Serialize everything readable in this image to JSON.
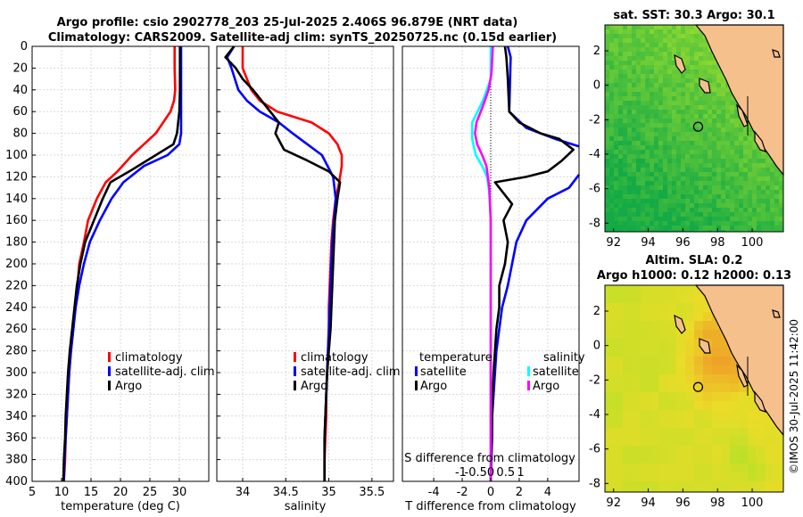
{
  "title_line1": "Argo profile: csio 2902778_203 25-Jul-2025 2.406S 96.879E (NRT data)",
  "title_line2": "Climatology: CARS2009. Satellite-adj clim: synTS_20250725.nc (0.15d earlier)",
  "watermark": "©IMOS 30-Jul-2025 11:42:00",
  "colors": {
    "climatology": "#ff0000",
    "satellite": "#0000ff",
    "argo": "#000000",
    "sal_satellite": "#00ffff",
    "sal_argo": "#ff00ff",
    "land": "#f5c08c"
  },
  "chart_data": [
    {
      "type": "line",
      "name": "temperature",
      "xlabel": "temperature (deg C)",
      "ylabel": "",
      "xlim": [
        5,
        35
      ],
      "ylim": [
        0,
        400
      ],
      "xticks": [
        "5",
        "10",
        "15",
        "20",
        "25",
        "30"
      ],
      "xtick_values": [
        5,
        10,
        15,
        20,
        25,
        30
      ],
      "yticks": [
        "0",
        "20",
        "40",
        "60",
        "80",
        "100",
        "120",
        "140",
        "160",
        "180",
        "200",
        "220",
        "240",
        "260",
        "280",
        "300",
        "320",
        "340",
        "360",
        "380",
        "400"
      ],
      "ytick_values": [
        0,
        20,
        40,
        60,
        80,
        100,
        120,
        140,
        160,
        180,
        200,
        220,
        240,
        260,
        280,
        300,
        320,
        340,
        360,
        380,
        400
      ],
      "grid": true,
      "legend": [
        "climatology",
        "satellite-adj. clim",
        "Argo"
      ],
      "legend_position": "middle-right",
      "series": [
        {
          "name": "climatology",
          "color": "#ff0000",
          "x": [
            29.2,
            29.2,
            29.3,
            29.1,
            28.5,
            26.0,
            22.0,
            19.5,
            17.5,
            16.0,
            14.5,
            13.8,
            13.0,
            12.7,
            12.3,
            12.0,
            11.6,
            11.3,
            11.1,
            10.9,
            10.7,
            10.6,
            10.5,
            10.4,
            10.3
          ],
          "y": [
            0,
            20,
            40,
            50,
            60,
            80,
            100,
            115,
            125,
            140,
            160,
            180,
            200,
            220,
            240,
            260,
            280,
            300,
            320,
            340,
            360,
            380,
            390,
            398,
            400
          ]
        },
        {
          "name": "satellite-adj. clim",
          "color": "#0000ff",
          "x": [
            30.3,
            30.3,
            30.3,
            30.3,
            30.3,
            30.0,
            28.0,
            24.0,
            20.5,
            18.5,
            16.5,
            14.8,
            13.8,
            13.0,
            12.4,
            12.0,
            11.6,
            11.3,
            11.1,
            10.9,
            10.7,
            10.5,
            10.4
          ],
          "y": [
            0,
            20,
            40,
            60,
            80,
            90,
            100,
            110,
            125,
            140,
            160,
            180,
            200,
            220,
            240,
            260,
            280,
            300,
            320,
            340,
            360,
            380,
            400
          ]
        },
        {
          "name": "Argo",
          "color": "#000000",
          "x": [
            30.1,
            30.1,
            30.1,
            30.0,
            29.8,
            29.6,
            29.0,
            26.0,
            21.5,
            18.3,
            17.0,
            15.5,
            14.0,
            13.2,
            12.6,
            12.2,
            11.8,
            11.4,
            11.1,
            10.9,
            10.7,
            10.6,
            10.4,
            10.3
          ],
          "y": [
            0,
            20,
            40,
            60,
            70,
            80,
            90,
            100,
            115,
            125,
            140,
            160,
            180,
            200,
            220,
            240,
            260,
            280,
            300,
            320,
            340,
            360,
            380,
            400
          ]
        }
      ]
    },
    {
      "type": "line",
      "name": "salinity",
      "xlabel": "salinity",
      "xlim": [
        33.7,
        35.75
      ],
      "ylim": [
        0,
        400
      ],
      "xticks": [
        "34",
        "34.5",
        "35",
        "35.5"
      ],
      "xtick_values": [
        34,
        34.5,
        35,
        35.5
      ],
      "grid": true,
      "legend": [
        "climatology",
        "satellite-adj. clim",
        "Argo"
      ],
      "legend_position": "middle-right",
      "series": [
        {
          "name": "climatology",
          "color": "#ff0000",
          "x": [
            34.0,
            34.0,
            34.1,
            34.2,
            34.4,
            34.8,
            35.0,
            35.1,
            35.15,
            35.15,
            35.12,
            35.08,
            35.05,
            35.03,
            35.02,
            35.01,
            35.0,
            35.0,
            34.99,
            34.98,
            34.97,
            34.97,
            34.96,
            34.95,
            34.95
          ],
          "y": [
            0,
            20,
            40,
            50,
            60,
            70,
            80,
            90,
            100,
            110,
            125,
            140,
            160,
            180,
            200,
            220,
            240,
            260,
            280,
            300,
            320,
            340,
            360,
            380,
            400
          ]
        },
        {
          "name": "satellite-adj. clim",
          "color": "#0000ff",
          "x": [
            33.9,
            33.82,
            33.87,
            33.95,
            34.05,
            34.2,
            34.42,
            34.58,
            34.75,
            34.92,
            35.05,
            35.08,
            35.06,
            35.04,
            35.03,
            35.02,
            35.01,
            35.0,
            34.99,
            34.98,
            34.97,
            34.96,
            34.95,
            34.95
          ],
          "y": [
            0,
            10,
            20,
            40,
            50,
            60,
            70,
            80,
            90,
            100,
            120,
            140,
            160,
            180,
            200,
            220,
            240,
            260,
            280,
            300,
            320,
            340,
            360,
            400
          ]
        },
        {
          "name": "Argo",
          "color": "#000000",
          "x": [
            33.9,
            33.8,
            33.92,
            34.0,
            34.12,
            34.32,
            34.42,
            34.38,
            34.48,
            34.75,
            35.0,
            35.13,
            35.1,
            35.07,
            35.06,
            35.05,
            35.04,
            35.03,
            35.02,
            35.0,
            34.98,
            34.97,
            34.96,
            34.95,
            34.95
          ],
          "y": [
            0,
            10,
            20,
            30,
            40,
            60,
            70,
            80,
            95,
            105,
            115,
            125,
            140,
            160,
            180,
            200,
            220,
            240,
            260,
            280,
            300,
            320,
            340,
            360,
            400
          ]
        }
      ]
    },
    {
      "type": "line",
      "name": "difference from climatology",
      "xlabel": "T difference from climatology",
      "xlabel_top": "S difference from climatology",
      "xlim": [
        -6.2,
        6.2
      ],
      "ylim": [
        0,
        400
      ],
      "xticks": [
        "-4",
        "-2",
        "0",
        "2",
        "4"
      ],
      "xtick_values": [
        -4,
        -2,
        0,
        2,
        4
      ],
      "top_xticks": [
        "-1",
        "-0.5",
        "0",
        "0.5",
        "1"
      ],
      "top_xtick_values": [
        -1,
        -0.5,
        0,
        0.5,
        1
      ],
      "grid": true,
      "legend_left_title": "temperature",
      "legend_right_title": "salinity",
      "legend": [
        "satellite",
        "Argo",
        "satellite",
        "Argo"
      ],
      "series": [
        {
          "name": "T satellite",
          "color": "#0000ff",
          "x": [
            1.2,
            1.4,
            1.3,
            2.5,
            4.5,
            6.2
          ],
          "y": [
            0,
            10,
            60,
            75,
            85,
            92
          ]
        },
        {
          "name": "T satellite (lower)",
          "color": "#0000ff",
          "x": [
            6.2,
            5.5,
            4.0,
            2.5,
            1.8,
            1.5,
            1.2,
            0.8,
            0.6,
            0.4,
            0.3,
            0.2,
            0.1,
            0.1,
            0.0
          ],
          "y": [
            118,
            130,
            140,
            160,
            180,
            200,
            220,
            240,
            260,
            280,
            300,
            320,
            340,
            360,
            400
          ]
        },
        {
          "name": "T Argo",
          "color": "#000000",
          "x": [
            1.0,
            1.1,
            1.2,
            1.3,
            2.0,
            3.5,
            4.8,
            5.8,
            5.0,
            4.0,
            2.5,
            0.3,
            1.2,
            1.5,
            0.9,
            1.2,
            1.0,
            0.6,
            0.6,
            0.4,
            0.3,
            0.2,
            0.1,
            0.0
          ],
          "y": [
            0,
            10,
            30,
            60,
            70,
            80,
            85,
            95,
            105,
            115,
            120,
            125,
            140,
            145,
            160,
            180,
            200,
            220,
            240,
            260,
            280,
            300,
            340,
            400
          ]
        },
        {
          "name": "S satellite",
          "color": "#00ffff",
          "x": [
            0.0,
            0.0,
            -0.55,
            -1.3,
            -1.3,
            -1.05,
            -0.6,
            -0.25,
            -0.1,
            0.0,
            0.0,
            0.0,
            0.0
          ],
          "y": [
            0,
            30,
            50,
            70,
            85,
            100,
            110,
            120,
            135,
            160,
            220,
            300,
            400
          ]
        },
        {
          "name": "S Argo",
          "color": "#ff00ff",
          "x": [
            0.15,
            0.05,
            -0.15,
            -0.55,
            -1.0,
            -1.1,
            -0.95,
            -0.6,
            -0.3,
            -0.2,
            -0.1,
            0.0,
            0.0
          ],
          "y": [
            0,
            25,
            40,
            55,
            70,
            80,
            90,
            100,
            110,
            120,
            130,
            160,
            400
          ]
        }
      ]
    },
    {
      "type": "heatmap",
      "name": "sat sst map",
      "title": "sat. SST: 30.3 Argo: 30.1",
      "xticks": [
        "92",
        "94",
        "96",
        "98",
        "100"
      ],
      "xtick_values": [
        92,
        94,
        96,
        98,
        100
      ],
      "yticks": [
        "2",
        "0",
        "-2",
        "-4",
        "-6",
        "-8"
      ],
      "ytick_values": [
        2,
        0,
        -2,
        -4,
        -6,
        -8
      ],
      "xlim": [
        91.5,
        101.8
      ],
      "ylim": [
        -8.5,
        3.5
      ],
      "marker": {
        "lon": 96.879,
        "lat": -2.406
      }
    },
    {
      "type": "heatmap",
      "name": "altim sla map",
      "title_line1": "Altim. SLA: 0.2",
      "title_line2": "Argo h1000: 0.12 h2000: 0.13",
      "xticks": [
        "92",
        "94",
        "96",
        "98",
        "100"
      ],
      "xtick_values": [
        92,
        94,
        96,
        98,
        100
      ],
      "yticks": [
        "2",
        "0",
        "-2",
        "-4",
        "-6",
        "-8"
      ],
      "ytick_values": [
        2,
        0,
        -2,
        -4,
        -6,
        -8
      ],
      "xlim": [
        91.5,
        101.8
      ],
      "ylim": [
        -8.5,
        3.5
      ],
      "marker": {
        "lon": 96.879,
        "lat": -2.406
      }
    }
  ]
}
